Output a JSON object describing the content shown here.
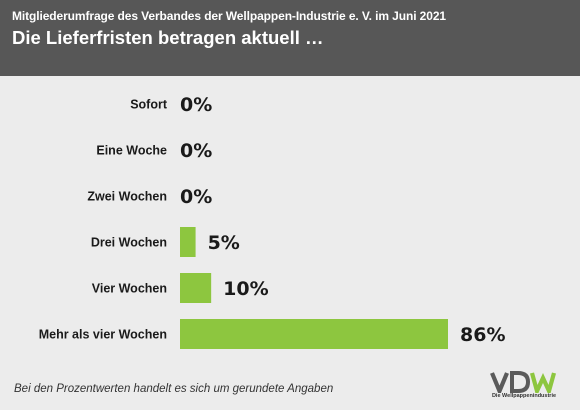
{
  "header": {
    "subtitle": "Mitgliederumfrage des Verbandes der Wellpappen-Industrie e. V. im Juni 2021",
    "title": "Die Lieferfristen betragen aktuell …"
  },
  "chart_data": {
    "type": "bar",
    "orientation": "horizontal",
    "categories": [
      "Sofort",
      "Eine Woche",
      "Zwei Wochen",
      "Drei Wochen",
      "Vier Wochen",
      "Mehr als vier Wochen"
    ],
    "values": [
      0,
      0,
      0,
      5,
      10,
      86
    ],
    "value_labels": [
      "0%",
      "0%",
      "0%",
      "5%",
      "10%",
      "86%"
    ],
    "xlim": [
      0,
      100
    ],
    "grid": false,
    "bar_color": "#8dc63f"
  },
  "footnote": "Bei den Prozentwerten handelt es sich um gerundete Angaben",
  "logo": {
    "text": "VDW",
    "caption": "Die Wellpappenindustrie",
    "color_dark": "#5a5a5a",
    "color_green": "#8dc63f"
  }
}
